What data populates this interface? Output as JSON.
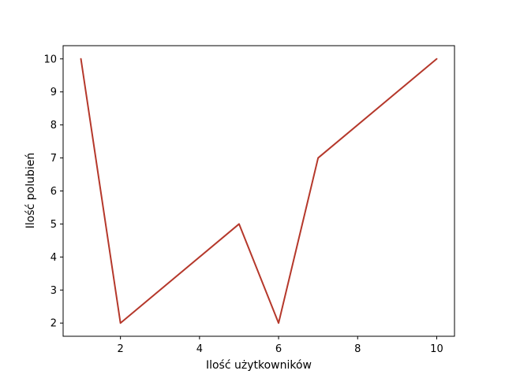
{
  "chart_data": {
    "type": "line",
    "title": "",
    "xlabel": "Ilość użytkowników",
    "ylabel": "Ilość polubień",
    "xlim": [
      0.55,
      10.45
    ],
    "ylim": [
      1.6,
      10.4
    ],
    "xticks": [
      2,
      4,
      6,
      8,
      10
    ],
    "yticks": [
      2,
      3,
      4,
      5,
      6,
      7,
      8,
      9,
      10
    ],
    "grid": false,
    "legend": "none",
    "series": [
      {
        "color": "#b5382b",
        "x": [
          1,
          2,
          5,
          6,
          7,
          10
        ],
        "y": [
          10,
          2,
          5,
          2,
          7,
          10
        ]
      }
    ]
  }
}
